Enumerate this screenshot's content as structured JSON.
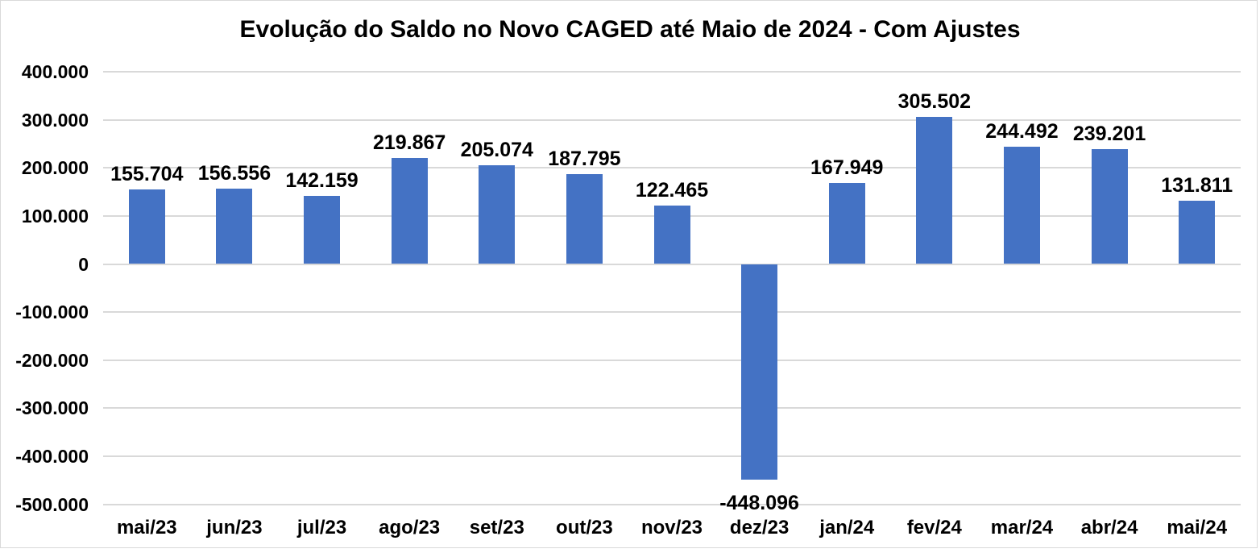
{
  "chart_data": {
    "type": "bar",
    "title": "Evolução do Saldo no Novo CAGED até Maio de 2024 - Com Ajustes",
    "categories": [
      "mai/23",
      "jun/23",
      "jul/23",
      "ago/23",
      "set/23",
      "out/23",
      "nov/23",
      "dez/23",
      "jan/24",
      "fev/24",
      "mar/24",
      "abr/24",
      "mai/24"
    ],
    "values": [
      155704,
      156556,
      142159,
      219867,
      205074,
      187795,
      122465,
      -448096,
      167949,
      305502,
      244492,
      239201,
      131811
    ],
    "value_labels": [
      "155.704",
      "156.556",
      "142.159",
      "219.867",
      "205.074",
      "187.795",
      "122.465",
      "-448.096",
      "167.949",
      "305.502",
      "244.492",
      "239.201",
      "131.811"
    ],
    "xlabel": "",
    "ylabel": "",
    "ylim": [
      -500000,
      400000
    ],
    "y_tick_values": [
      400000,
      300000,
      200000,
      100000,
      0,
      -100000,
      -200000,
      -300000,
      -400000,
      -500000
    ],
    "y_tick_labels": [
      "400.000",
      "300.000",
      "200.000",
      "100.000",
      "0",
      "-100.000",
      "-200.000",
      "-300.000",
      "-400.000",
      "-500.000"
    ],
    "grid": true,
    "legend": "none",
    "colors": {
      "bar": "#4472C4",
      "gridline": "#D9D9D9",
      "text": "#000000",
      "background": "#FFFFFF",
      "border": "#D9D9D9"
    }
  }
}
